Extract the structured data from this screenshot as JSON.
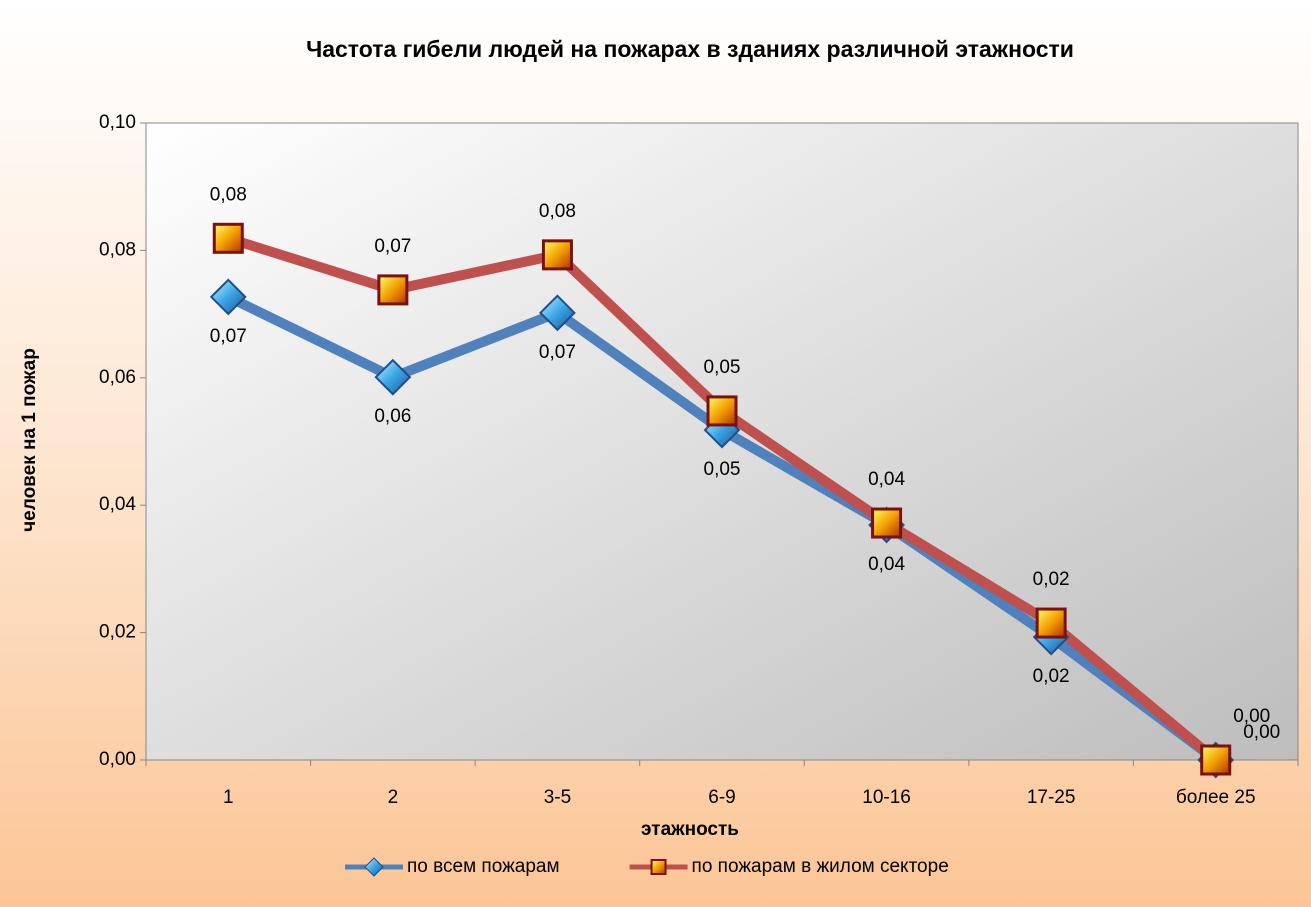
{
  "chart_data": {
    "type": "line",
    "title": "Частота гибели людей на пожарах в зданиях различной этажности",
    "x_label": "этажность",
    "y_label": "человек на 1 пожар",
    "categories": [
      "1",
      "2",
      "3-5",
      "6-9",
      "10-16",
      "17-25",
      "более 25"
    ],
    "series": [
      {
        "name": "по всем пожарам",
        "color": "#4f81bd",
        "values": [
          0.0727,
          0.0601,
          0.0702,
          0.0518,
          0.0369,
          0.0193,
          0
        ],
        "value_labels": [
          "0,07",
          "0,06",
          "0,07",
          "0,05",
          "0,04",
          "0,02",
          "0,00"
        ]
      },
      {
        "name": "по пожарам в жилом секторе",
        "color": "#c0504d",
        "values": [
          0.0819,
          0.0738,
          0.0793,
          0.0548,
          0.0372,
          0.0215,
          0
        ],
        "value_labels": [
          "0,08",
          "0,07",
          "0,08",
          "0,05",
          "0,04",
          "0,02",
          "0,00"
        ]
      }
    ],
    "ylim": [
      0,
      0.1
    ],
    "yticks": [
      {
        "value": 0,
        "label": "0,00"
      },
      {
        "value": 0.02,
        "label": "0,02"
      },
      {
        "value": 0.04,
        "label": "0,04"
      },
      {
        "value": 0.06,
        "label": "0,06"
      },
      {
        "value": 0.08,
        "label": "0,08"
      },
      {
        "value": 0.1,
        "label": "0,10"
      }
    ],
    "legend": "bottom"
  }
}
